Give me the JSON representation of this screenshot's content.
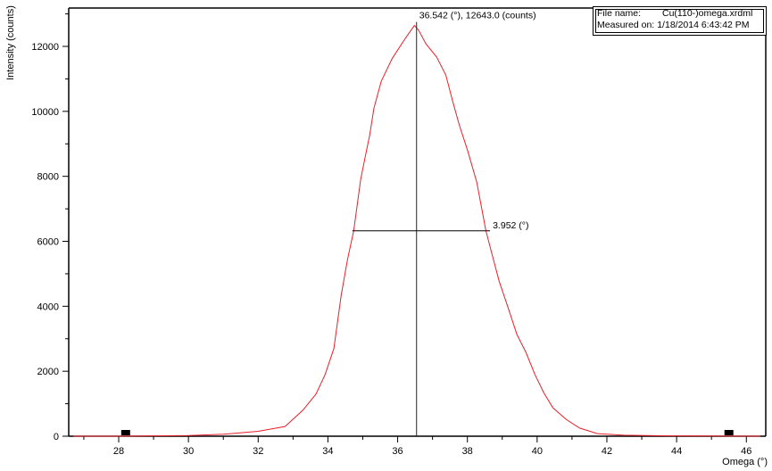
{
  "chart_data": {
    "type": "line",
    "title": "",
    "xlabel": "Omega (°)",
    "ylabel": "Intensity (counts)",
    "xlim": [
      26.6,
      46.5
    ],
    "ylim": [
      0,
      12800
    ],
    "x_ticks": [
      28,
      30,
      32,
      34,
      36,
      38,
      40,
      42,
      44,
      46
    ],
    "y_ticks": [
      0,
      2000,
      4000,
      6000,
      8000,
      10000,
      12000
    ],
    "grid": false,
    "legend": "none",
    "series": [
      {
        "name": "Cu(110-)omega",
        "color": "#e8202a",
        "x": [
          26.7,
          28.0,
          30.0,
          31.0,
          32.0,
          32.77,
          33.28,
          33.66,
          33.92,
          34.17,
          34.38,
          34.56,
          34.74,
          34.94,
          35.07,
          35.2,
          35.32,
          35.53,
          35.84,
          36.22,
          36.48,
          36.6,
          36.81,
          37.12,
          37.38,
          37.58,
          37.76,
          38.01,
          38.27,
          38.53,
          38.71,
          38.91,
          39.17,
          39.42,
          39.68,
          39.94,
          40.19,
          40.45,
          40.83,
          41.22,
          41.73,
          42.5,
          43.78,
          46.4
        ],
        "y": [
          0,
          0,
          20,
          60,
          150,
          300,
          800,
          1300,
          1900,
          2700,
          4340,
          5430,
          6320,
          7900,
          8600,
          9280,
          10100,
          10930,
          11620,
          12250,
          12643,
          12500,
          12080,
          11670,
          11120,
          10300,
          9610,
          8780,
          7820,
          6330,
          5590,
          4770,
          3950,
          3130,
          2580,
          1890,
          1340,
          880,
          520,
          250,
          80,
          30,
          10,
          0
        ]
      }
    ],
    "annotations": [
      {
        "type": "peak_marker",
        "x": 36.542,
        "y": 12643.0,
        "label": "36.542 (°), 12643.0 (counts)"
      },
      {
        "type": "fwhm",
        "x_left": 34.7,
        "x_right": 38.65,
        "y": 6321.5,
        "label": "3.952 (°)"
      }
    ],
    "markers": [
      {
        "type": "range_marker",
        "x": 28.2
      },
      {
        "type": "range_marker",
        "x": 45.5
      }
    ]
  },
  "info": {
    "file_name_label": "File name:",
    "file_name_value": "Cu(110-)omega.xrdml",
    "measured_label": "Measured on:",
    "measured_value": "1/18/2014 6:43:42 PM"
  },
  "labels": {
    "y_axis": "Intensity (counts)",
    "x_axis": "Omega (°)",
    "peak": "36.542 (°), 12643.0 (counts)",
    "fwhm": "3.952 (°)"
  },
  "colors": {
    "curve": "#e8202a",
    "axis": "#000000",
    "marker_line": "#222222"
  }
}
